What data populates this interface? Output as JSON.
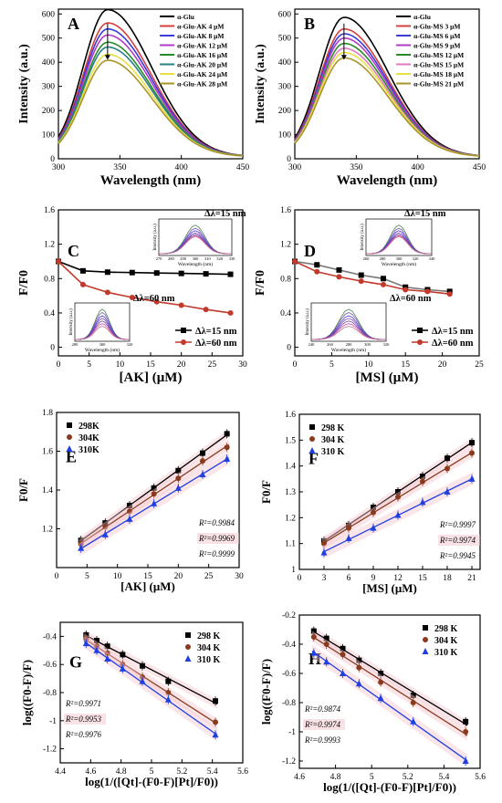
{
  "chart_data": [
    {
      "id": "A",
      "type": "line",
      "panel_letter": "A",
      "xlabel": "Wavelength (nm)",
      "ylabel": "Intensity (a.u.)",
      "xlim": [
        300,
        450
      ],
      "ylim": [
        0,
        620
      ],
      "xticks": [
        300,
        350,
        400,
        450
      ],
      "yticks": [
        0,
        100,
        200,
        300,
        400,
        500,
        600
      ],
      "legend_position": "top-right",
      "arrow": "down",
      "series": [
        {
          "name": "α-Glu",
          "peak": 610,
          "color": "#000000"
        },
        {
          "name": "α-Glu-AK  4 μM",
          "peak": 555,
          "color": "#d6403b"
        },
        {
          "name": "α-Glu-AK  8 μM",
          "peak": 530,
          "color": "#3a3ad8"
        },
        {
          "name": "α-Glu-AK 12 μM",
          "peak": 505,
          "color": "#b03bc7"
        },
        {
          "name": "α-Glu-AK 16 μM",
          "peak": 475,
          "color": "#2a8a2a"
        },
        {
          "name": "α-Glu-AK 20 μM",
          "peak": 455,
          "color": "#2a7f84"
        },
        {
          "name": "α-Glu-AK 24 μM",
          "peak": 425,
          "color": "#e8e040"
        },
        {
          "name": "α-Glu-AK 28 μM",
          "peak": 400,
          "color": "#a8952a"
        }
      ]
    },
    {
      "id": "B",
      "type": "line",
      "panel_letter": "B",
      "xlabel": "Wavelength (nm)",
      "ylabel": "Intensity (a.u.)",
      "xlim": [
        300,
        450
      ],
      "ylim": [
        0,
        620
      ],
      "xticks": [
        300,
        350,
        400,
        450
      ],
      "yticks": [
        0,
        100,
        200,
        300,
        400,
        500,
        600
      ],
      "legend_position": "top-right",
      "arrow": "down",
      "series": [
        {
          "name": "α-Glu",
          "peak": 578,
          "color": "#000000"
        },
        {
          "name": "α-Glu-MS  3 μM",
          "peak": 530,
          "color": "#d6403b"
        },
        {
          "name": "α-Glu-MS  6 μM",
          "peak": 510,
          "color": "#3a3ad8"
        },
        {
          "name": "α-Glu-MS  9 μM",
          "peak": 492,
          "color": "#b03bc7"
        },
        {
          "name": "α-Glu-MS 12 μM",
          "peak": 470,
          "color": "#2a8a2a"
        },
        {
          "name": "α-Glu-MS 15 μM",
          "peak": 450,
          "color": "#e07ac0"
        },
        {
          "name": "α-Glu-MS 18 μM",
          "peak": 432,
          "color": "#e8e040"
        },
        {
          "name": "α-Glu-MS 21 μM",
          "peak": 410,
          "color": "#a8952a"
        }
      ]
    },
    {
      "id": "C",
      "type": "line",
      "panel_letter": "C",
      "xlabel": "[AK] (μM)",
      "ylabel": "F/F0",
      "xlim": [
        0,
        30
      ],
      "ylim": [
        -0.1,
        1.6
      ],
      "xticks": [
        0,
        5,
        10,
        15,
        20,
        25,
        30
      ],
      "yticks": [
        0.0,
        0.4,
        0.8,
        1.2,
        1.6
      ],
      "legend_position": "bottom-right",
      "annotations": [
        "Δλ=15 nm",
        "Δλ=60 nm"
      ],
      "series": [
        {
          "name": "Δλ=15 nm",
          "color": "#000000",
          "marker": "square",
          "x": [
            0,
            4,
            8,
            12,
            16,
            20,
            24,
            28
          ],
          "y": [
            1.0,
            0.89,
            0.875,
            0.87,
            0.865,
            0.86,
            0.855,
            0.85
          ]
        },
        {
          "name": "Δλ=60 nm",
          "color": "#c0392b",
          "marker": "circle",
          "x": [
            0,
            4,
            8,
            12,
            16,
            20,
            24,
            28
          ],
          "y": [
            1.0,
            0.73,
            0.64,
            0.58,
            0.53,
            0.49,
            0.44,
            0.4
          ]
        }
      ],
      "insets": [
        {
          "ylabel": "Intensity (a.u.)",
          "xlabel": "Wavelength (nm)",
          "xticks": [
            270,
            280,
            290,
            300,
            310,
            320,
            330
          ],
          "yticks": [
            0,
            40,
            80,
            120
          ],
          "note": "Δλ=15 nm"
        },
        {
          "ylabel": "Intensity (a.u.)",
          "xlabel": "Wavelength (nm)",
          "xticks": [
            280,
            300,
            320
          ],
          "yticks": [
            0,
            100,
            200,
            300
          ],
          "note": "Δλ=60 nm"
        }
      ]
    },
    {
      "id": "D",
      "type": "line",
      "panel_letter": "D",
      "xlabel": "[MS] (μM)",
      "ylabel": "F/F0",
      "xlim": [
        0,
        25
      ],
      "ylim": [
        -0.1,
        1.6
      ],
      "xticks": [
        0,
        5,
        10,
        15,
        20,
        25
      ],
      "yticks": [
        0.0,
        0.4,
        0.8,
        1.2,
        1.6
      ],
      "legend_position": "bottom-right",
      "annotations": [
        "Δλ=15 nm",
        "Δλ=60 nm"
      ],
      "series": [
        {
          "name": "Δλ=15 nm",
          "color": "#000000",
          "marker": "square",
          "x": [
            0,
            3,
            6,
            9,
            12,
            15,
            18,
            21
          ],
          "y": [
            1.0,
            0.96,
            0.9,
            0.84,
            0.8,
            0.7,
            0.67,
            0.65
          ]
        },
        {
          "name": "Δλ=60 nm",
          "color": "#c0392b",
          "marker": "circle",
          "x": [
            0,
            3,
            6,
            9,
            12,
            15,
            18,
            21
          ],
          "y": [
            1.0,
            0.88,
            0.82,
            0.77,
            0.73,
            0.67,
            0.65,
            0.62
          ]
        }
      ],
      "insets": [
        {
          "ylabel": "Intensity (a.u.)",
          "xlabel": "Wavelength (nm)",
          "xticks": [
            260,
            280,
            300,
            320,
            340
          ],
          "yticks": [
            0,
            20,
            40,
            60,
            80,
            100,
            120
          ],
          "note": "Δλ=15 nm"
        },
        {
          "ylabel": "Intensity (a.u.)",
          "xlabel": "Wavelength (nm)",
          "xticks": [
            240,
            260,
            280,
            300,
            320
          ],
          "yticks": [
            0,
            100,
            200,
            300,
            400,
            500,
            600
          ],
          "note": "Δλ=60 nm"
        }
      ]
    },
    {
      "id": "E",
      "type": "scatter",
      "panel_letter": "E",
      "xlabel": "[AK] (μM)",
      "ylabel": "F0/F",
      "xlim": [
        0,
        30
      ],
      "ylim": [
        1.0,
        1.8
      ],
      "xticks": [
        0,
        5,
        10,
        15,
        20,
        25,
        30
      ],
      "yticks": [
        1.2,
        1.4,
        1.6,
        1.8
      ],
      "legend_position": "top-left",
      "series": [
        {
          "name": "298K",
          "color": "#000000",
          "marker": "square",
          "r2": "R²=0.9984",
          "x": [
            4,
            8,
            12,
            16,
            20,
            24,
            28
          ],
          "y": [
            1.14,
            1.23,
            1.32,
            1.41,
            1.5,
            1.59,
            1.69
          ]
        },
        {
          "name": "304K",
          "color": "#8b3a1e",
          "marker": "circle",
          "r2": "R²=0.9969",
          "x": [
            4,
            8,
            12,
            16,
            20,
            24,
            28
          ],
          "y": [
            1.12,
            1.21,
            1.29,
            1.38,
            1.46,
            1.55,
            1.62
          ]
        },
        {
          "name": "310K",
          "color": "#1f3fe0",
          "marker": "triangle",
          "r2": "R²=0.9999",
          "x": [
            4,
            8,
            12,
            16,
            20,
            24,
            28
          ],
          "y": [
            1.1,
            1.17,
            1.25,
            1.33,
            1.41,
            1.48,
            1.56
          ]
        }
      ]
    },
    {
      "id": "F",
      "type": "scatter",
      "panel_letter": "F",
      "xlabel": "[MS] (μM)",
      "ylabel": "F0/F",
      "xlim": [
        0,
        22
      ],
      "ylim": [
        1.0,
        1.6
      ],
      "xticks": [
        0,
        3,
        6,
        9,
        12,
        15,
        18,
        21
      ],
      "yticks": [
        1.0,
        1.1,
        1.2,
        1.3,
        1.4,
        1.5,
        1.6
      ],
      "legend_position": "top-left",
      "series": [
        {
          "name": "298 K",
          "color": "#000000",
          "marker": "square",
          "r2": "R²=0.9997",
          "x": [
            3,
            6,
            9,
            12,
            15,
            18,
            21
          ],
          "y": [
            1.11,
            1.17,
            1.24,
            1.3,
            1.36,
            1.43,
            1.49
          ]
        },
        {
          "name": "304 K",
          "color": "#8b3a1e",
          "marker": "circle",
          "r2": "R²=0.9974",
          "x": [
            3,
            6,
            9,
            12,
            15,
            18,
            21
          ],
          "y": [
            1.1,
            1.16,
            1.22,
            1.28,
            1.34,
            1.39,
            1.45
          ]
        },
        {
          "name": "310 K",
          "color": "#1f3fe0",
          "marker": "triangle",
          "r2": "R²=0.9945",
          "x": [
            3,
            6,
            9,
            12,
            15,
            18,
            21
          ],
          "y": [
            1.065,
            1.12,
            1.16,
            1.21,
            1.26,
            1.3,
            1.35
          ]
        }
      ]
    },
    {
      "id": "G",
      "type": "scatter",
      "panel_letter": "G",
      "xlabel": "log(1/([Qt]-(F0-F)[Pt]/F0))",
      "ylabel": "log((F0-F)/F)",
      "xlim": [
        4.4,
        5.6
      ],
      "ylim": [
        -1.3,
        -0.3
      ],
      "xticks": [
        4.4,
        4.6,
        4.8,
        5.0,
        5.2,
        5.4,
        5.6
      ],
      "yticks": [
        -1.2,
        -1.0,
        -0.8,
        -0.6,
        -0.4
      ],
      "legend_position": "top-right",
      "series": [
        {
          "name": "298 K",
          "color": "#000000",
          "marker": "square",
          "r2": "R²=0.9971",
          "x": [
            4.57,
            4.64,
            4.71,
            4.81,
            4.94,
            5.11,
            5.42
          ],
          "y": [
            -0.39,
            -0.43,
            -0.47,
            -0.53,
            -0.61,
            -0.72,
            -0.86
          ]
        },
        {
          "name": "304 K",
          "color": "#8b3a1e",
          "marker": "circle",
          "r2": "R²=0.9953",
          "x": [
            4.57,
            4.64,
            4.71,
            4.81,
            4.94,
            5.11,
            5.42
          ],
          "y": [
            -0.42,
            -0.47,
            -0.52,
            -0.6,
            -0.69,
            -0.8,
            -1.01
          ]
        },
        {
          "name": "310 K",
          "color": "#1f3fe0",
          "marker": "triangle",
          "r2": "R²=0.9976",
          "x": [
            4.57,
            4.64,
            4.71,
            4.81,
            4.94,
            5.11,
            5.42
          ],
          "y": [
            -0.45,
            -0.5,
            -0.56,
            -0.63,
            -0.72,
            -0.85,
            -1.1
          ]
        }
      ]
    },
    {
      "id": "H",
      "type": "scatter",
      "panel_letter": "H",
      "xlabel": "log(1/([Qt]-(F0-F)[Pt]/F0))",
      "ylabel": "log((F0-F)/F)",
      "xlim": [
        4.6,
        5.6
      ],
      "ylim": [
        -1.25,
        -0.2
      ],
      "xticks": [
        4.6,
        4.8,
        5.0,
        5.2,
        5.4,
        5.6
      ],
      "yticks": [
        -1.2,
        -1.0,
        -0.8,
        -0.6,
        -0.4,
        -0.2
      ],
      "legend_position": "top-right",
      "series": [
        {
          "name": "298 K",
          "color": "#000000",
          "marker": "square",
          "r2": "R²=0.9874",
          "x": [
            4.68,
            4.75,
            4.84,
            4.93,
            5.05,
            5.23,
            5.52
          ],
          "y": [
            -0.31,
            -0.36,
            -0.43,
            -0.51,
            -0.6,
            -0.75,
            -0.93
          ]
        },
        {
          "name": "304 K",
          "color": "#8b3a1e",
          "marker": "circle",
          "r2": "R²=0.9974",
          "x": [
            4.68,
            4.75,
            4.84,
            4.93,
            5.05,
            5.23,
            5.52
          ],
          "y": [
            -0.35,
            -0.4,
            -0.47,
            -0.56,
            -0.66,
            -0.8,
            -1.0
          ]
        },
        {
          "name": "310 K",
          "color": "#1f3fe0",
          "marker": "triangle",
          "r2": "R²=0.9993",
          "x": [
            4.68,
            4.75,
            4.84,
            4.93,
            5.05,
            5.23,
            5.52
          ],
          "y": [
            -0.46,
            -0.52,
            -0.6,
            -0.67,
            -0.77,
            -0.93,
            -1.2
          ]
        }
      ]
    }
  ]
}
